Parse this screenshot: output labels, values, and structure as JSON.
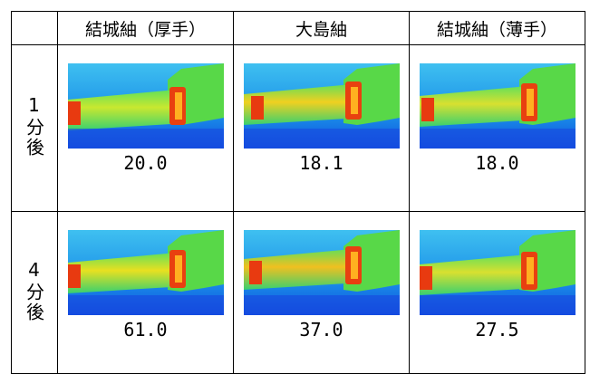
{
  "table": {
    "columns": [
      "結城紬（厚手）",
      "大島紬",
      "結城紬（薄手）"
    ],
    "rows": [
      {
        "label": "1分後",
        "values": [
          "20.0",
          "18.1",
          "18.0"
        ]
      },
      {
        "label": "4分後",
        "values": [
          "61.0",
          "37.0",
          "27.5"
        ]
      }
    ]
  }
}
